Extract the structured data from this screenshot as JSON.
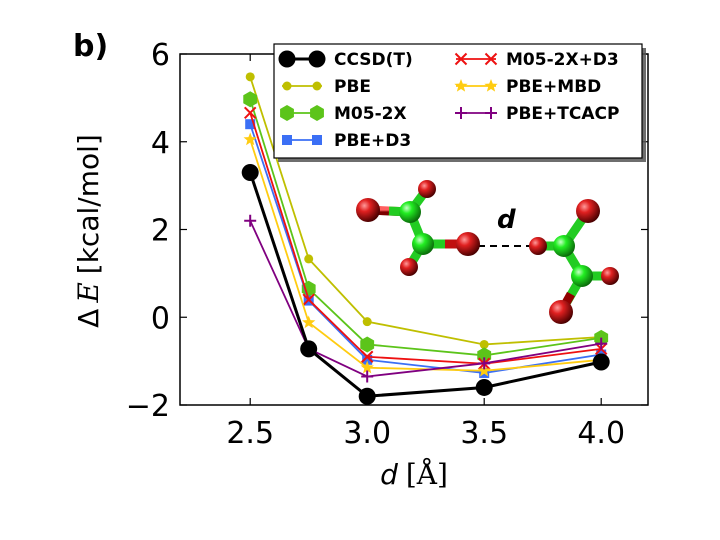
{
  "chart_data": {
    "type": "line",
    "panel_label": "b)",
    "xlabel_var": "d",
    "xlabel_unit": "[Å]",
    "ylabel": "Δ E [kcal/mol]",
    "ylabel_delta": "Δ",
    "ylabel_var": "E",
    "ylabel_unit": "[kcal/mol]",
    "xlim": [
      2.2,
      4.2
    ],
    "ylim": [
      -2,
      6
    ],
    "xticks": [
      "2.5",
      "3.0",
      "3.5",
      "4.0"
    ],
    "yticks": [
      "−2",
      "0",
      "2",
      "4",
      "6"
    ],
    "x": [
      2.5,
      2.75,
      3.0,
      3.5,
      4.0
    ],
    "series": [
      {
        "name": "CCSD(T)",
        "color": "#000000",
        "marker": "circle-large",
        "values": [
          3.3,
          -0.72,
          -1.8,
          -1.6,
          -1.02
        ]
      },
      {
        "name": "PBE",
        "color": "#bfbf00",
        "marker": "circle-small",
        "values": [
          5.48,
          1.33,
          -0.1,
          -0.62,
          -0.45
        ]
      },
      {
        "name": "M05-2X",
        "color": "#5cc41a",
        "marker": "hexagon",
        "values": [
          4.97,
          0.65,
          -0.62,
          -0.87,
          -0.47
        ]
      },
      {
        "name": "PBE+D3",
        "color": "#3b6ff5",
        "marker": "square",
        "values": [
          4.4,
          0.38,
          -0.97,
          -1.27,
          -0.85
        ]
      },
      {
        "name": "M05-2X+D3",
        "color": "#ee1111",
        "marker": "x",
        "values": [
          4.66,
          0.4,
          -0.9,
          -1.06,
          -0.72
        ]
      },
      {
        "name": "PBE+MBD",
        "color": "#ffcc11",
        "marker": "star",
        "values": [
          4.05,
          -0.12,
          -1.15,
          -1.22,
          -0.97
        ]
      },
      {
        "name": "PBE+TCACP",
        "color": "#800080",
        "marker": "plus",
        "values": [
          2.2,
          -0.72,
          -1.35,
          -1.05,
          -0.6
        ]
      }
    ],
    "legend_position": "top-right",
    "inset_label": "d"
  }
}
